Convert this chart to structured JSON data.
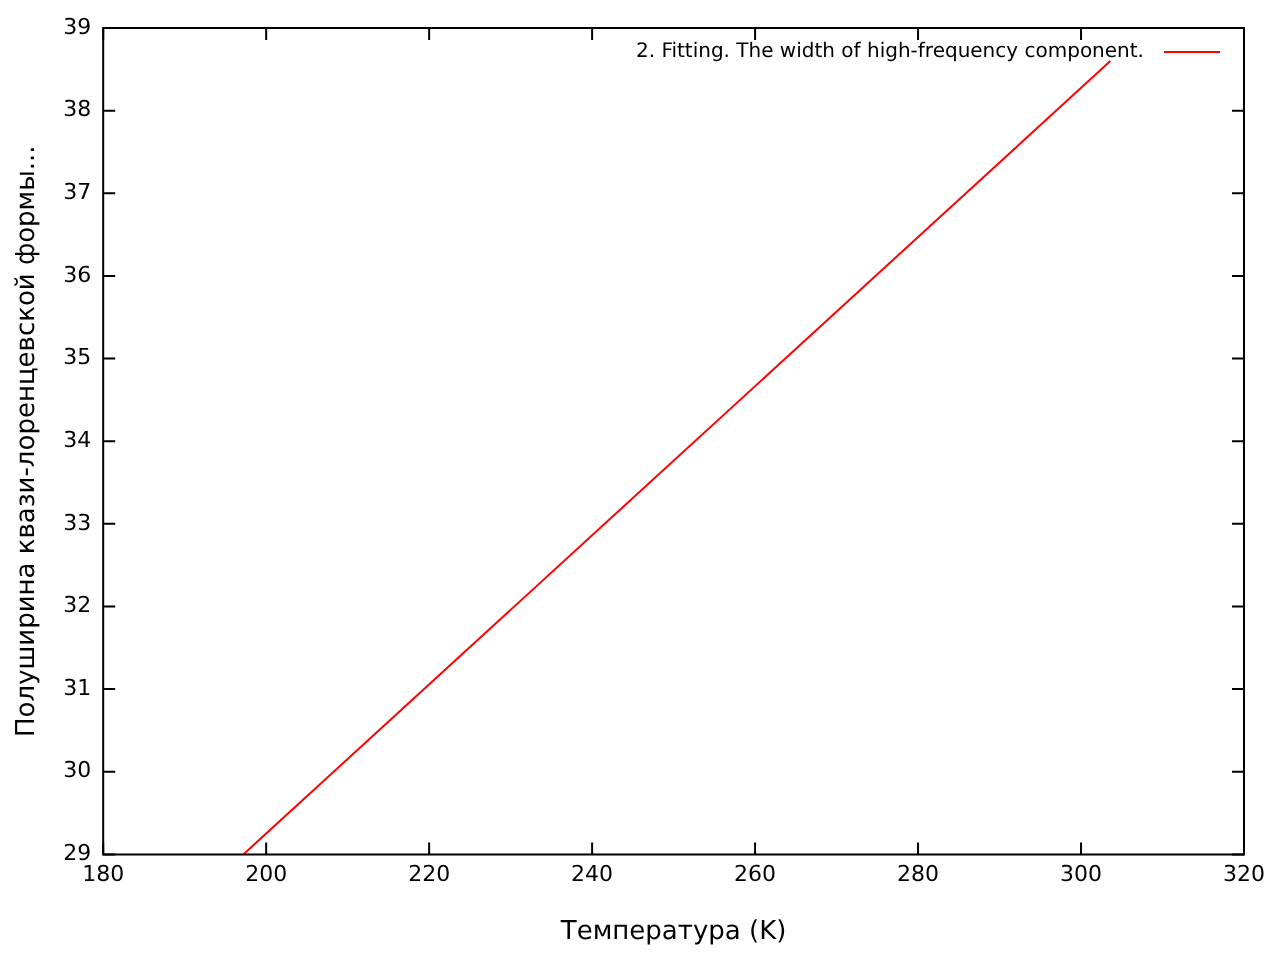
{
  "chart_data": {
    "type": "line",
    "xlabel": "Температура (K)",
    "ylabel": "Полуширина квази-лоренцевской формы...",
    "x": [
      197.2,
      303.6
    ],
    "series": [
      {
        "name": "2. Fitting. The width of high-frequency component.",
        "color": "#ff0000",
        "values": [
          29,
          38.6
        ]
      }
    ],
    "xlim": [
      180,
      320
    ],
    "xticks": [
      180,
      200,
      220,
      240,
      260,
      280,
      300,
      320
    ],
    "ylim": [
      29,
      39
    ],
    "yticks": [
      29,
      30,
      31,
      32,
      33,
      34,
      35,
      36,
      37,
      38,
      39
    ],
    "grid": false,
    "legend": "top right",
    "marker": "none",
    "line_style": "solid"
  }
}
